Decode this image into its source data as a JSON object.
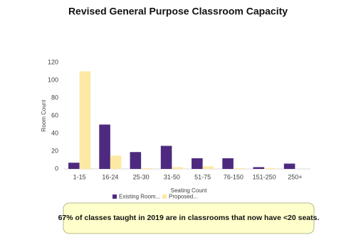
{
  "chart_data": {
    "type": "bar",
    "title": "Revised General Purpose Classroom Capacity",
    "y_label": "Room Count",
    "x_label": "Seating Count",
    "categories": [
      "1-15",
      "16-24",
      "25-30",
      "31-50",
      "51-75",
      "76-150",
      "151-250",
      "250+"
    ],
    "series": [
      {
        "name": "Existing Room...",
        "color": "#4d2a7f",
        "values": [
          7,
          50,
          19,
          26,
          12,
          12,
          2,
          6
        ]
      },
      {
        "name": "Proposed...",
        "color": "#fde9a3",
        "values": [
          110,
          15,
          1,
          2,
          3,
          1,
          1,
          0
        ]
      }
    ],
    "ylim": [
      0,
      120
    ],
    "yticks": [
      0,
      20,
      40,
      60,
      80,
      100,
      120
    ],
    "grid": false,
    "annotation": "67% of classes taught in 2019 are in classrooms that now have <20 seats."
  }
}
